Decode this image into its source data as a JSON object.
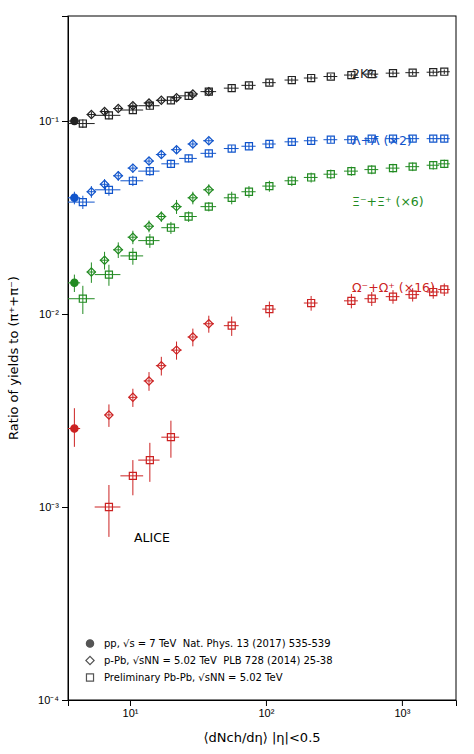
{
  "chart_data": {
    "type": "scatter",
    "xlabel": "⟨dNch/dη⟩ |η|<0.5",
    "ylabel": "Ratio of yields to (π⁺+π⁻)",
    "log": true,
    "xlim": [
      3.5,
      2500
    ],
    "ylim": [
      0.0001,
      0.35
    ],
    "xticks": [
      {
        "value": 10,
        "label": "10¹"
      },
      {
        "value": 100,
        "label": "10²"
      },
      {
        "value": 1000,
        "label": "10³"
      }
    ],
    "yticks": [
      {
        "value": 0.0001,
        "label": "10⁻⁴"
      },
      {
        "value": 0.001,
        "label": "10⁻³"
      },
      {
        "value": 0.01,
        "label": "10⁻²"
      },
      {
        "value": 0.1,
        "label": "10⁻¹"
      }
    ],
    "legend": "lower left",
    "series": [
      {
        "name": "pp, √s = 7 TeV  Nat. Phys. 13 (2017) 535-539",
        "color": "#222222",
        "marker": "circle",
        "x": [
          3.9
        ],
        "values": [
          0.1
        ],
        "x_err": [
          [
            0.4
          ],
          [
            0.4
          ]
        ],
        "y_err": [
          [
            0.004
          ],
          [
            0.004
          ]
        ]
      },
      {
        "name": "p-Pb, √sNN = 5.02 TeV  PLB 728 (2014) 25-38",
        "color": "#222222",
        "marker": "diamond-open",
        "x": [
          5.2,
          6.5,
          8.2,
          10.5,
          13.8,
          17.0,
          22.0,
          29.0,
          38.0
        ],
        "values": [
          0.108,
          0.112,
          0.116,
          0.12,
          0.124,
          0.128,
          0.132,
          0.138,
          0.142
        ],
        "x_err": [
          [
            0.4,
            0.5,
            0.7,
            0.9,
            1.2,
            1.5,
            2.0,
            2.5,
            3.5
          ],
          [
            0.4,
            0.5,
            0.7,
            0.9,
            1.2,
            1.5,
            2.0,
            2.5,
            3.5
          ]
        ],
        "y_err": [
          [
            0.004,
            0.004,
            0.004,
            0.004,
            0.004,
            0.004,
            0.004,
            0.004,
            0.004
          ],
          [
            0.004,
            0.004,
            0.004,
            0.004,
            0.004,
            0.004,
            0.004,
            0.004,
            0.004
          ]
        ]
      },
      {
        "name": "Preliminary Pb-Pb, √sNN = 5.02 TeV",
        "color": "#222222",
        "marker": "square-open",
        "x": [
          4.5,
          7.0,
          10.5,
          14.0,
          20.0,
          27.0,
          38.0,
          56.0,
          75.0,
          106.0,
          155.0,
          215.0,
          300.0,
          425.0,
          600.0,
          860.0,
          1200.0,
          1700.0,
          2050.0
        ],
        "values": [
          0.097,
          0.107,
          0.114,
          0.12,
          0.128,
          0.135,
          0.142,
          0.148,
          0.153,
          0.158,
          0.163,
          0.167,
          0.17,
          0.173,
          0.175,
          0.177,
          0.178,
          0.179,
          0.18
        ],
        "x_err": [
          [
            1.0,
            1.5,
            2.0,
            2.5,
            3.0,
            4.0,
            5.0,
            7.0,
            9.0,
            12.0,
            18.0,
            25.0,
            35.0,
            50.0,
            70.0,
            100.0,
            140.0,
            180.0,
            200.0
          ],
          [
            1.0,
            1.5,
            2.0,
            2.5,
            3.0,
            4.0,
            5.0,
            7.0,
            9.0,
            12.0,
            18.0,
            25.0,
            35.0,
            50.0,
            70.0,
            100.0,
            140.0,
            180.0,
            200.0
          ]
        ],
        "y_err": [
          [
            0.005,
            0.005,
            0.005,
            0.005,
            0.005,
            0.005,
            0.005,
            0.005,
            0.005,
            0.005,
            0.005,
            0.005,
            0.005,
            0.005,
            0.005,
            0.005,
            0.005,
            0.005,
            0.005
          ],
          [
            0.005,
            0.005,
            0.005,
            0.005,
            0.005,
            0.005,
            0.005,
            0.005,
            0.005,
            0.005,
            0.005,
            0.005,
            0.005,
            0.005,
            0.005,
            0.005,
            0.005,
            0.005,
            0.005
          ]
        ]
      },
      {
        "name": "pp, √s = 7 TeV  Nat. Phys. 13 (2017) 535-539",
        "color": "#1155cc",
        "marker": "circle",
        "x": [
          3.9
        ],
        "values": [
          0.04
        ],
        "x_err": [
          [
            0.4
          ],
          [
            0.4
          ]
        ],
        "y_err": [
          [
            0.003
          ],
          [
            0.003
          ]
        ]
      },
      {
        "name": "p-Pb, √sNN = 5.02 TeV  PLB 728 (2014) 25-38",
        "color": "#1155cc",
        "marker": "diamond-open",
        "x": [
          5.2,
          6.5,
          8.2,
          10.5,
          13.8,
          17.0,
          22.0,
          29.0,
          38.0
        ],
        "values": [
          0.043,
          0.047,
          0.052,
          0.057,
          0.062,
          0.067,
          0.071,
          0.076,
          0.079
        ],
        "x_err": [
          [
            0.4,
            0.5,
            0.7,
            0.9,
            1.2,
            1.5,
            2.0,
            2.5,
            3.5
          ],
          [
            0.4,
            0.5,
            0.7,
            0.9,
            1.2,
            1.5,
            2.0,
            2.5,
            3.5
          ]
        ],
        "y_err": [
          [
            0.003,
            0.003,
            0.003,
            0.003,
            0.003,
            0.003,
            0.003,
            0.003,
            0.003
          ],
          [
            0.003,
            0.003,
            0.003,
            0.003,
            0.003,
            0.003,
            0.003,
            0.003,
            0.003
          ]
        ]
      },
      {
        "name": "Preliminary Pb-Pb, √sNN = 5.02 TeV",
        "color": "#1155cc",
        "marker": "square-open",
        "x": [
          4.5,
          7.0,
          10.5,
          14.0,
          20.0,
          27.0,
          38.0,
          56.0,
          75.0,
          106.0,
          155.0,
          215.0,
          300.0,
          425.0,
          600.0,
          860.0,
          1200.0,
          1700.0,
          2050.0
        ],
        "values": [
          0.038,
          0.044,
          0.049,
          0.055,
          0.06,
          0.064,
          0.068,
          0.072,
          0.074,
          0.076,
          0.078,
          0.079,
          0.08,
          0.08,
          0.081,
          0.081,
          0.081,
          0.081,
          0.081
        ],
        "x_err": [
          [
            1.0,
            1.5,
            2.0,
            2.5,
            3.0,
            4.0,
            5.0,
            7.0,
            9.0,
            12.0,
            18.0,
            25.0,
            35.0,
            50.0,
            70.0,
            100.0,
            140.0,
            180.0,
            200.0
          ],
          [
            1.0,
            1.5,
            2.0,
            2.5,
            3.0,
            4.0,
            5.0,
            7.0,
            9.0,
            12.0,
            18.0,
            25.0,
            35.0,
            50.0,
            70.0,
            100.0,
            140.0,
            180.0,
            200.0
          ]
        ],
        "y_err": [
          [
            0.003,
            0.003,
            0.003,
            0.003,
            0.003,
            0.003,
            0.003,
            0.003,
            0.003,
            0.003,
            0.003,
            0.003,
            0.003,
            0.003,
            0.003,
            0.003,
            0.003,
            0.003,
            0.003
          ],
          [
            0.003,
            0.003,
            0.003,
            0.003,
            0.003,
            0.003,
            0.003,
            0.003,
            0.003,
            0.003,
            0.003,
            0.003,
            0.003,
            0.003,
            0.003,
            0.003,
            0.003,
            0.003,
            0.003
          ]
        ]
      },
      {
        "name": "pp, √s = 7 TeV  Nat. Phys. 13 (2017) 535-539",
        "color": "#228b22",
        "marker": "circle",
        "x": [
          3.9
        ],
        "values": [
          0.0145
        ],
        "x_err": [
          [
            0.4
          ],
          [
            0.4
          ]
        ],
        "y_err": [
          [
            0.0015
          ],
          [
            0.0015
          ]
        ]
      },
      {
        "name": "p-Pb, √sNN = 5.02 TeV  PLB 728 (2014) 25-38",
        "color": "#228b22",
        "marker": "diamond-open",
        "x": [
          5.2,
          6.5,
          8.2,
          10.5,
          13.8,
          17.0,
          22.0,
          29.0,
          38.0
        ],
        "values": [
          0.0165,
          0.019,
          0.0215,
          0.025,
          0.0285,
          0.032,
          0.036,
          0.04,
          0.044
        ],
        "x_err": [
          [
            0.4,
            0.5,
            0.7,
            0.9,
            1.2,
            1.5,
            2.0,
            2.5,
            3.5
          ],
          [
            0.4,
            0.5,
            0.7,
            0.9,
            1.2,
            1.5,
            2.0,
            2.5,
            3.5
          ]
        ],
        "y_err": [
          [
            0.002,
            0.002,
            0.002,
            0.002,
            0.002,
            0.002,
            0.003,
            0.003,
            0.003
          ],
          [
            0.002,
            0.002,
            0.002,
            0.002,
            0.002,
            0.002,
            0.003,
            0.003,
            0.003
          ]
        ]
      },
      {
        "name": "Preliminary Pb-Pb, √sNN = 5.02 TeV",
        "color": "#228b22",
        "marker": "square-open",
        "x": [
          4.5,
          7.0,
          10.5,
          14.0,
          20.0,
          27.0,
          38.0,
          56.0,
          75.0,
          106.0,
          155.0,
          215.0,
          300.0,
          425.0,
          600.0,
          860.0,
          1200.0,
          1700.0,
          2050.0
        ],
        "values": [
          0.012,
          0.016,
          0.02,
          0.024,
          0.028,
          0.032,
          0.036,
          0.04,
          0.043,
          0.046,
          0.049,
          0.051,
          0.053,
          0.055,
          0.056,
          0.057,
          0.058,
          0.059,
          0.06
        ],
        "x_err": [
          [
            1.0,
            1.5,
            2.0,
            2.5,
            3.0,
            4.0,
            5.0,
            7.0,
            9.0,
            12.0,
            18.0,
            25.0,
            35.0,
            50.0,
            70.0,
            100.0,
            140.0,
            180.0,
            200.0
          ],
          [
            1.0,
            1.5,
            2.0,
            2.5,
            3.0,
            4.0,
            5.0,
            7.0,
            9.0,
            12.0,
            18.0,
            25.0,
            35.0,
            50.0,
            70.0,
            100.0,
            140.0,
            180.0,
            200.0
          ]
        ],
        "y_err": [
          [
            0.002,
            0.002,
            0.002,
            0.002,
            0.002,
            0.002,
            0.002,
            0.003,
            0.003,
            0.003,
            0.003,
            0.003,
            0.003,
            0.003,
            0.003,
            0.003,
            0.003,
            0.003,
            0.003
          ],
          [
            0.002,
            0.002,
            0.002,
            0.002,
            0.002,
            0.002,
            0.002,
            0.003,
            0.003,
            0.003,
            0.003,
            0.003,
            0.003,
            0.003,
            0.003,
            0.003,
            0.003,
            0.003,
            0.003
          ]
        ]
      },
      {
        "name": "pp, √s = 7 TeV  Nat. Phys. 13 (2017) 535-539",
        "color": "#cc2222",
        "marker": "circle",
        "x": [
          3.9
        ],
        "values": [
          0.00255
        ],
        "x_err": [
          [
            0.4
          ],
          [
            0.4
          ]
        ],
        "y_err": [
          [
            0.0005
          ],
          [
            0.0007
          ]
        ]
      },
      {
        "name": "p-Pb, √sNN = 5.02 TeV  PLB 728 (2014) 25-38",
        "color": "#cc2222",
        "marker": "diamond-open",
        "x": [
          7.0,
          10.5,
          13.8,
          17.0,
          22.0,
          29.0,
          38.0
        ],
        "values": [
          0.003,
          0.0037,
          0.0045,
          0.0054,
          0.0065,
          0.0076,
          0.0089
        ],
        "x_err": [
          [
            0.5,
            0.7,
            1.2,
            1.5,
            2.0,
            2.5,
            3.5
          ],
          [
            0.5,
            0.7,
            1.2,
            1.5,
            2.0,
            2.5,
            3.5
          ]
        ],
        "y_err": [
          [
            0.0004,
            0.0004,
            0.0005,
            0.0006,
            0.0007,
            0.0008,
            0.0009
          ],
          [
            0.0004,
            0.0004,
            0.0005,
            0.0006,
            0.0007,
            0.0008,
            0.0009
          ]
        ]
      },
      {
        "name": "Preliminary Pb-Pb, √sNN = 5.02 TeV",
        "color": "#cc2222",
        "marker": "square-open",
        "x": [
          7.0,
          10.5,
          14.0,
          20.0,
          56.0,
          106.0,
          215.0,
          425.0,
          600.0,
          860.0,
          1200.0,
          1700.0,
          2050.0
        ],
        "values": [
          0.001,
          0.00145,
          0.00175,
          0.0023,
          0.0087,
          0.0106,
          0.0114,
          0.0117,
          0.012,
          0.0123,
          0.0126,
          0.013,
          0.0134
        ],
        "x_err": [
          [
            1.5,
            2.0,
            2.5,
            3.0,
            7.0,
            12.0,
            25.0,
            50.0,
            70.0,
            100.0,
            140.0,
            180.0,
            200.0
          ],
          [
            1.5,
            2.0,
            2.5,
            3.0,
            7.0,
            12.0,
            25.0,
            50.0,
            70.0,
            100.0,
            140.0,
            180.0,
            200.0
          ]
        ],
        "y_err": [
          [
            0.0003,
            0.0003,
            0.0004,
            0.0005,
            0.001,
            0.001,
            0.001,
            0.001,
            0.001,
            0.001,
            0.001,
            0.001,
            0.001
          ],
          [
            0.0003,
            0.0003,
            0.0004,
            0.0005,
            0.001,
            0.001,
            0.001,
            0.001,
            0.001,
            0.001,
            0.001,
            0.001,
            0.001
          ]
        ]
      }
    ],
    "annotations": [
      {
        "text": "2K⁰ₛ",
        "x": 430,
        "y": 0.175,
        "color": "#222222"
      },
      {
        "text": "Λ+Λ̄ (×2)",
        "x": 430,
        "y": 0.078,
        "color": "#1155cc"
      },
      {
        "text": "Ξ⁻+Ξ̄⁺ (×6)",
        "x": 430,
        "y": 0.038,
        "color": "#228b22"
      },
      {
        "text": "Ω⁻+Ω⁺ (×16)",
        "x": 430,
        "y": 0.0135,
        "color": "#cc2222"
      },
      {
        "text": "ALICE"
      }
    ]
  }
}
